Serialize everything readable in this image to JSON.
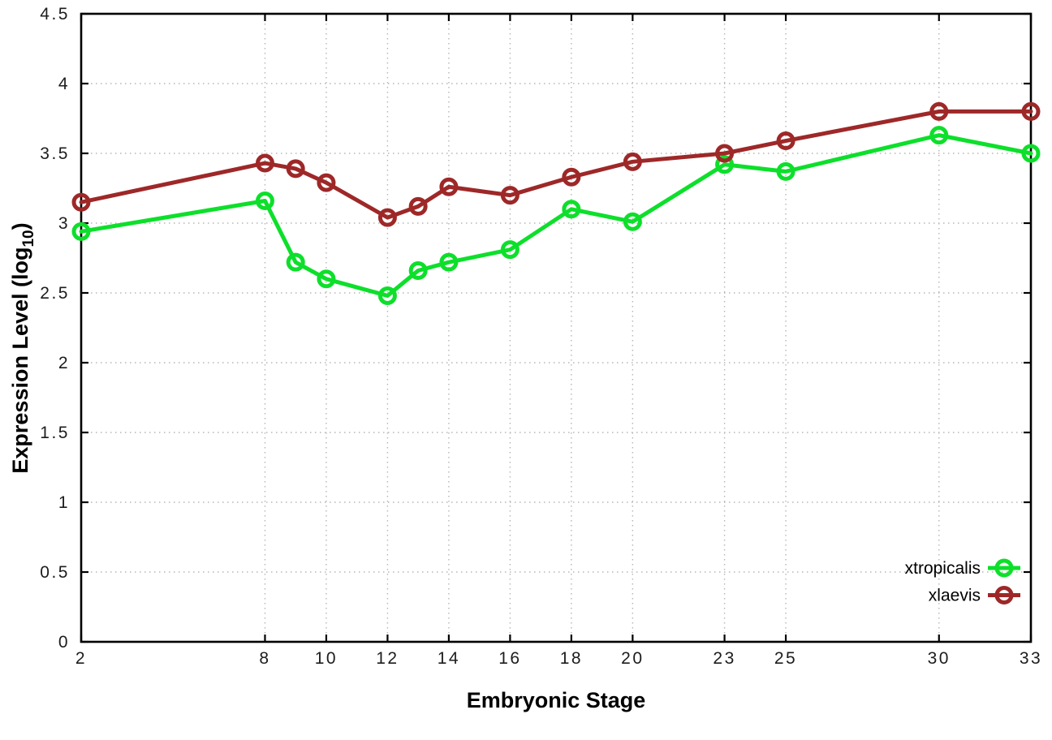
{
  "chart_data": {
    "type": "line",
    "title": "",
    "xlabel": "Embryonic Stage",
    "ylabel": {
      "main": "Expression Level (log",
      "sub": "10",
      "suffix": ")"
    },
    "x": [
      2,
      8,
      9,
      10,
      12,
      13,
      14,
      16,
      18,
      20,
      23,
      25,
      30,
      33
    ],
    "series": [
      {
        "name": "xtropicalis",
        "color": "#0ddf2b",
        "marker": "open-circle",
        "values": [
          2.94,
          3.16,
          2.72,
          2.6,
          2.48,
          2.66,
          2.72,
          2.81,
          3.1,
          3.01,
          3.42,
          3.37,
          3.63,
          3.5
        ]
      },
      {
        "name": "xlaevis",
        "color": "#9e2828",
        "marker": "open-circle",
        "values": [
          3.15,
          3.43,
          3.39,
          3.29,
          3.04,
          3.12,
          3.26,
          3.2,
          3.33,
          3.44,
          3.5,
          3.59,
          3.8,
          3.8
        ]
      }
    ],
    "xlim": [
      2,
      33
    ],
    "ylim": [
      0,
      4.5
    ],
    "xticks": [
      2,
      8,
      10,
      12,
      14,
      16,
      18,
      20,
      23,
      25,
      30,
      33
    ],
    "xtick_labels": [
      "2",
      "8",
      "10",
      "12",
      "14",
      "16",
      "18",
      "20",
      "23",
      "25",
      "30",
      "33"
    ],
    "yticks": [
      0,
      0.5,
      1,
      1.5,
      2,
      2.5,
      3,
      3.5,
      4,
      4.5
    ],
    "ytick_labels": [
      "0",
      "0.5",
      "1",
      "1.5",
      "2",
      "2.5",
      "3",
      "3.5",
      "4",
      "4.5"
    ],
    "grid": true,
    "grid_style": "dotted",
    "legend_position": "bottom-right-inside",
    "legend_entries": [
      "xtropicalis",
      "xlaevis"
    ]
  },
  "colors": {
    "background": "#ffffff",
    "plot_border": "#000000",
    "grid": "#b6b6b6",
    "tick_text": "#1c1c1c",
    "title_text": "#000000"
  }
}
